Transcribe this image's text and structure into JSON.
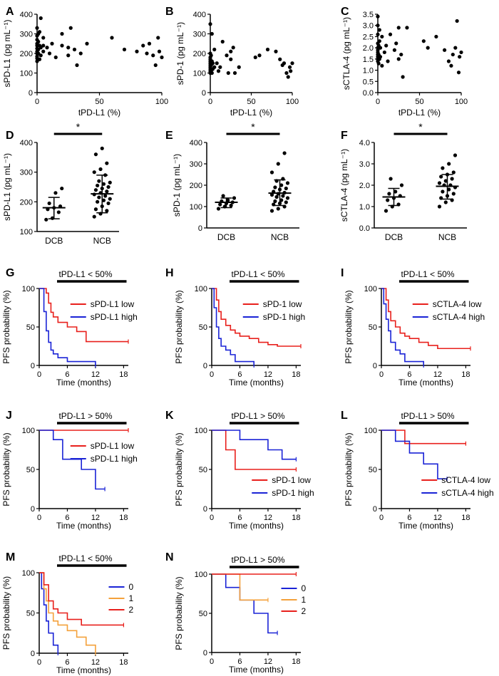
{
  "colors": {
    "red": "#e8201c",
    "blue": "#1a23d6",
    "orange": "#f4a13b",
    "black": "#000000"
  },
  "chart_data": [
    {
      "panel": "A",
      "type": "scatter",
      "xlabel": "tPD-L1 (%)",
      "ylabel": "sPD-L1 (pg mL⁻¹)",
      "xlim": [
        0,
        100
      ],
      "ylim": [
        0,
        400
      ],
      "xticks": [
        0,
        50,
        100
      ],
      "yticks": [
        0,
        100,
        200,
        300,
        400
      ],
      "x": [
        0,
        0,
        0,
        0,
        0,
        0,
        0,
        0,
        0,
        0,
        0,
        1,
        1,
        1,
        1,
        2,
        2,
        2,
        3,
        3,
        3,
        5,
        5,
        5,
        8,
        10,
        12,
        15,
        20,
        20,
        25,
        25,
        27,
        30,
        32,
        35,
        40,
        60,
        70,
        80,
        85,
        88,
        90,
        93,
        95,
        97,
        98,
        100
      ],
      "y": [
        160,
        175,
        185,
        200,
        210,
        225,
        240,
        250,
        270,
        290,
        330,
        200,
        220,
        260,
        300,
        170,
        240,
        310,
        190,
        230,
        380,
        210,
        240,
        280,
        230,
        200,
        250,
        180,
        240,
        300,
        230,
        190,
        330,
        220,
        140,
        200,
        250,
        280,
        220,
        210,
        240,
        200,
        250,
        190,
        140,
        280,
        210,
        180
      ]
    },
    {
      "panel": "B",
      "type": "scatter",
      "xlabel": "tPD-L1 (%)",
      "ylabel": "sPD-1 (pg mL⁻¹)",
      "xlim": [
        0,
        100
      ],
      "ylim": [
        0,
        400
      ],
      "xticks": [
        0,
        50,
        100
      ],
      "yticks": [
        0,
        100,
        200,
        300,
        400
      ],
      "x": [
        0,
        0,
        0,
        0,
        0,
        0,
        0,
        0,
        0,
        0,
        0,
        1,
        1,
        1,
        2,
        2,
        2,
        3,
        3,
        5,
        5,
        8,
        10,
        12,
        15,
        20,
        22,
        25,
        25,
        28,
        30,
        35,
        55,
        60,
        70,
        80,
        85,
        88,
        90,
        93,
        95,
        97,
        98,
        100
      ],
      "y": [
        100,
        110,
        120,
        130,
        140,
        150,
        160,
        170,
        180,
        200,
        350,
        110,
        140,
        190,
        100,
        160,
        300,
        120,
        150,
        130,
        220,
        150,
        110,
        130,
        260,
        190,
        100,
        210,
        170,
        230,
        100,
        130,
        180,
        190,
        220,
        210,
        170,
        140,
        150,
        100,
        80,
        130,
        110,
        150
      ]
    },
    {
      "panel": "C",
      "type": "scatter",
      "xlabel": "tPD-L1 (%)",
      "ylabel": "sCTLA-4 (pg mL⁻¹)",
      "xlim": [
        0,
        100
      ],
      "ylim": [
        0,
        3.5
      ],
      "xticks": [
        0,
        50,
        100
      ],
      "yticks": [
        0,
        0.5,
        1.0,
        1.5,
        2.0,
        2.5,
        3.0,
        3.5
      ],
      "x": [
        0,
        0,
        0,
        0,
        0,
        0,
        0,
        0,
        0,
        0,
        0,
        1,
        1,
        1,
        2,
        2,
        2,
        3,
        3,
        5,
        5,
        8,
        10,
        12,
        15,
        20,
        22,
        25,
        25,
        28,
        30,
        35,
        55,
        60,
        70,
        80,
        85,
        88,
        90,
        93,
        95,
        97,
        98,
        100
      ],
      "y": [
        1.4,
        1.5,
        1.6,
        1.7,
        1.8,
        1.9,
        2.0,
        2.2,
        2.6,
        3.0,
        3.4,
        1.3,
        1.7,
        2.1,
        1.5,
        2.3,
        2.8,
        1.6,
        2.0,
        1.2,
        2.5,
        1.8,
        2.1,
        1.4,
        2.6,
        1.9,
        2.2,
        2.9,
        1.5,
        1.7,
        0.7,
        2.9,
        2.3,
        2.0,
        2.5,
        1.9,
        1.4,
        1.2,
        1.7,
        2.0,
        3.2,
        0.9,
        1.6,
        1.8
      ]
    },
    {
      "panel": "D",
      "type": "scatter",
      "categories": [
        "DCB",
        "NCB"
      ],
      "ylabel": "sPD-L1 (pg mL⁻¹)",
      "ylim": [
        100,
        400
      ],
      "yticks": [
        100,
        200,
        300,
        400
      ],
      "sig": "*",
      "groups": [
        {
          "name": "DCB",
          "mean": 180,
          "sd_low": 143,
          "sd_high": 215,
          "values": [
            140,
            145,
            165,
            175,
            180,
            185,
            195,
            230,
            245
          ]
        },
        {
          "name": "NCB",
          "mean": 227,
          "sd_low": 163,
          "sd_high": 290,
          "values": [
            150,
            160,
            170,
            175,
            185,
            195,
            200,
            205,
            210,
            215,
            220,
            225,
            230,
            235,
            240,
            245,
            250,
            255,
            260,
            265,
            270,
            290,
            300,
            310,
            330,
            360,
            380
          ]
        }
      ]
    },
    {
      "panel": "E",
      "type": "scatter",
      "categories": [
        "DCB",
        "NCB"
      ],
      "ylabel": "sPD-1 (pg mL⁻¹)",
      "ylim": [
        0,
        400
      ],
      "yticks": [
        0,
        100,
        200,
        300,
        400
      ],
      "sig": "*",
      "groups": [
        {
          "name": "DCB",
          "mean": 120,
          "sd_low": 95,
          "sd_high": 140,
          "values": [
            90,
            100,
            105,
            110,
            115,
            120,
            125,
            130,
            140,
            150
          ]
        },
        {
          "name": "NCB",
          "mean": 163,
          "sd_low": 105,
          "sd_high": 225,
          "values": [
            80,
            90,
            100,
            110,
            115,
            120,
            125,
            130,
            140,
            145,
            150,
            155,
            160,
            165,
            170,
            180,
            185,
            190,
            200,
            210,
            220,
            230,
            260,
            300,
            350
          ]
        }
      ]
    },
    {
      "panel": "F",
      "type": "scatter",
      "categories": [
        "DCB",
        "NCB"
      ],
      "ylabel": "sCTLA-4 (pg mL⁻¹)",
      "ylim": [
        0,
        4.0
      ],
      "yticks": [
        0,
        1.0,
        2.0,
        3.0,
        4.0
      ],
      "sig": "*",
      "groups": [
        {
          "name": "DCB",
          "mean": 1.45,
          "sd_low": 1.05,
          "sd_high": 1.85,
          "values": [
            0.8,
            1.0,
            1.1,
            1.3,
            1.4,
            1.5,
            1.6,
            1.7,
            2.0,
            2.3
          ]
        },
        {
          "name": "NCB",
          "mean": 1.95,
          "sd_low": 1.35,
          "sd_high": 2.5,
          "values": [
            1.0,
            1.2,
            1.3,
            1.4,
            1.5,
            1.6,
            1.7,
            1.8,
            1.9,
            2.0,
            2.0,
            2.1,
            2.2,
            2.3,
            2.4,
            2.5,
            2.6,
            2.8,
            3.0,
            3.4
          ]
        }
      ]
    },
    {
      "panel": "G",
      "type": "line",
      "title": "tPD-L1 < 50%",
      "xlabel": "Time (months)",
      "ylabel": "PFS probability (%)",
      "xlim": [
        0,
        19
      ],
      "ylim": [
        0,
        100
      ],
      "xticks": [
        0,
        6,
        12,
        18
      ],
      "yticks": [
        0,
        50,
        100
      ],
      "legend_pos": "top-right",
      "series": [
        {
          "name": "sPD-L1 low",
          "color": "red",
          "x": [
            0,
            1.5,
            2,
            2.5,
            3,
            4,
            6,
            8,
            10,
            19
          ],
          "y": [
            100,
            94,
            81,
            69,
            63,
            56,
            50,
            44,
            31,
            31
          ]
        },
        {
          "name": "sPD-L1 high",
          "color": "blue",
          "x": [
            0,
            1,
            1.5,
            2,
            2.5,
            3,
            4,
            6,
            12
          ],
          "y": [
            100,
            70,
            45,
            30,
            20,
            15,
            10,
            5,
            0
          ]
        }
      ]
    },
    {
      "panel": "H",
      "type": "line",
      "title": "tPD-L1 < 50%",
      "xlabel": "Time (months)",
      "ylabel": "PFS probability (%)",
      "xlim": [
        0,
        19
      ],
      "ylim": [
        0,
        100
      ],
      "xticks": [
        0,
        6,
        12,
        18
      ],
      "yticks": [
        0,
        50,
        100
      ],
      "legend_pos": "top-right",
      "series": [
        {
          "name": "sPD-1 low",
          "color": "red",
          "x": [
            0,
            1,
            1.5,
            2,
            3,
            4,
            5,
            6,
            8,
            10,
            12,
            14,
            19
          ],
          "y": [
            100,
            85,
            70,
            60,
            52,
            46,
            42,
            38,
            35,
            30,
            27,
            25,
            25
          ]
        },
        {
          "name": "sPD-1 high",
          "color": "blue",
          "x": [
            0,
            0.5,
            1,
            1.5,
            2,
            3,
            4,
            5,
            9
          ],
          "y": [
            100,
            75,
            50,
            35,
            25,
            20,
            14,
            5,
            0
          ]
        }
      ]
    },
    {
      "panel": "I",
      "type": "line",
      "title": "tPD-L1 < 50%",
      "xlabel": "Time (months)",
      "ylabel": "PFS probability (%)",
      "xlim": [
        0,
        19
      ],
      "ylim": [
        0,
        100
      ],
      "xticks": [
        0,
        6,
        12,
        18
      ],
      "yticks": [
        0,
        50,
        100
      ],
      "legend_pos": "top-right",
      "series": [
        {
          "name": "sCTLA-4 low",
          "color": "red",
          "x": [
            0,
            1,
            1.5,
            2,
            3,
            4,
            5,
            6,
            8,
            10,
            12,
            19
          ],
          "y": [
            100,
            85,
            70,
            58,
            50,
            42,
            38,
            35,
            30,
            26,
            22,
            22
          ]
        },
        {
          "name": "sCTLA-4 high",
          "color": "blue",
          "x": [
            0,
            0.5,
            1,
            1.5,
            2,
            3,
            4,
            5,
            9
          ],
          "y": [
            100,
            80,
            60,
            45,
            30,
            20,
            15,
            5,
            0
          ]
        }
      ]
    },
    {
      "panel": "J",
      "type": "line",
      "title": "tPD-L1 > 50%",
      "xlabel": "Time (months)",
      "ylabel": "PFS probability (%)",
      "xlim": [
        0,
        19
      ],
      "ylim": [
        0,
        100
      ],
      "xticks": [
        0,
        6,
        12,
        18
      ],
      "yticks": [
        0,
        50,
        100
      ],
      "legend_pos": "top-right",
      "series": [
        {
          "name": "sPD-L1 low",
          "color": "red",
          "x": [
            0,
            19
          ],
          "y": [
            100,
            100
          ]
        },
        {
          "name": "sPD-L1 high",
          "color": "blue",
          "x": [
            0,
            3,
            5,
            9,
            12,
            14
          ],
          "y": [
            100,
            88,
            63,
            50,
            25,
            25
          ]
        }
      ]
    },
    {
      "panel": "K",
      "type": "line",
      "title": "tPD-L1 > 50%",
      "xlabel": "Time (months)",
      "ylabel": "PFS probability (%)",
      "xlim": [
        0,
        19
      ],
      "ylim": [
        0,
        100
      ],
      "xticks": [
        0,
        6,
        12,
        18
      ],
      "yticks": [
        0,
        50,
        100
      ],
      "legend_pos": "bottom-right",
      "series": [
        {
          "name": "sPD-1 low",
          "color": "red",
          "x": [
            0,
            3,
            5,
            18
          ],
          "y": [
            100,
            75,
            50,
            50
          ]
        },
        {
          "name": "sPD-1 high",
          "color": "blue",
          "x": [
            0,
            6,
            12,
            15,
            18
          ],
          "y": [
            100,
            88,
            75,
            63,
            63
          ]
        }
      ]
    },
    {
      "panel": "L",
      "type": "line",
      "title": "tPD-L1 > 50%",
      "xlabel": "Time (months)",
      "ylabel": "PFS probability (%)",
      "xlim": [
        0,
        19
      ],
      "ylim": [
        0,
        100
      ],
      "xticks": [
        0,
        6,
        12,
        18
      ],
      "yticks": [
        0,
        50,
        100
      ],
      "legend_pos": "bottom-right",
      "series": [
        {
          "name": "sCTLA-4 low",
          "color": "red",
          "x": [
            0,
            5,
            18
          ],
          "y": [
            100,
            83,
            83
          ]
        },
        {
          "name": "sCTLA-4 high",
          "color": "blue",
          "x": [
            0,
            3,
            6,
            9,
            12,
            14
          ],
          "y": [
            100,
            86,
            71,
            57,
            38,
            38
          ]
        }
      ]
    },
    {
      "panel": "M",
      "type": "line",
      "title": "tPD-L1 < 50%",
      "xlabel": "Time (months)",
      "ylabel": "PFS probability (%)",
      "xlim": [
        0,
        19
      ],
      "ylim": [
        0,
        100
      ],
      "xticks": [
        0,
        6,
        12,
        18
      ],
      "yticks": [
        0,
        50,
        100
      ],
      "legend_pos": "right",
      "series": [
        {
          "name": "0",
          "color": "blue",
          "x": [
            0,
            0.5,
            1,
            1.5,
            2,
            3,
            4
          ],
          "y": [
            100,
            80,
            60,
            40,
            25,
            10,
            0
          ]
        },
        {
          "name": "1",
          "color": "orange",
          "x": [
            0,
            1,
            1.5,
            2,
            3,
            4,
            6,
            8,
            10,
            12
          ],
          "y": [
            100,
            80,
            65,
            50,
            40,
            35,
            28,
            20,
            10,
            0
          ]
        },
        {
          "name": "2",
          "color": "red",
          "x": [
            0,
            1,
            2,
            3,
            4,
            6,
            9,
            12,
            18
          ],
          "y": [
            100,
            85,
            65,
            55,
            50,
            42,
            35,
            35,
            35
          ]
        }
      ]
    },
    {
      "panel": "N",
      "type": "line",
      "title": "tPD-L1 > 50%",
      "xlabel": "Time (months)",
      "ylabel": "PFS probability (%)",
      "xlim": [
        0,
        19
      ],
      "ylim": [
        0,
        100
      ],
      "xticks": [
        0,
        6,
        12,
        18
      ],
      "yticks": [
        0,
        50,
        100
      ],
      "legend_pos": "right",
      "series": [
        {
          "name": "0",
          "color": "blue",
          "x": [
            0,
            3,
            6,
            9,
            12,
            14
          ],
          "y": [
            100,
            83,
            67,
            50,
            25,
            25
          ]
        },
        {
          "name": "1",
          "color": "orange",
          "x": [
            0,
            6,
            12
          ],
          "y": [
            100,
            67,
            67
          ]
        },
        {
          "name": "2",
          "color": "red",
          "x": [
            0,
            18
          ],
          "y": [
            100,
            100
          ]
        }
      ]
    }
  ]
}
